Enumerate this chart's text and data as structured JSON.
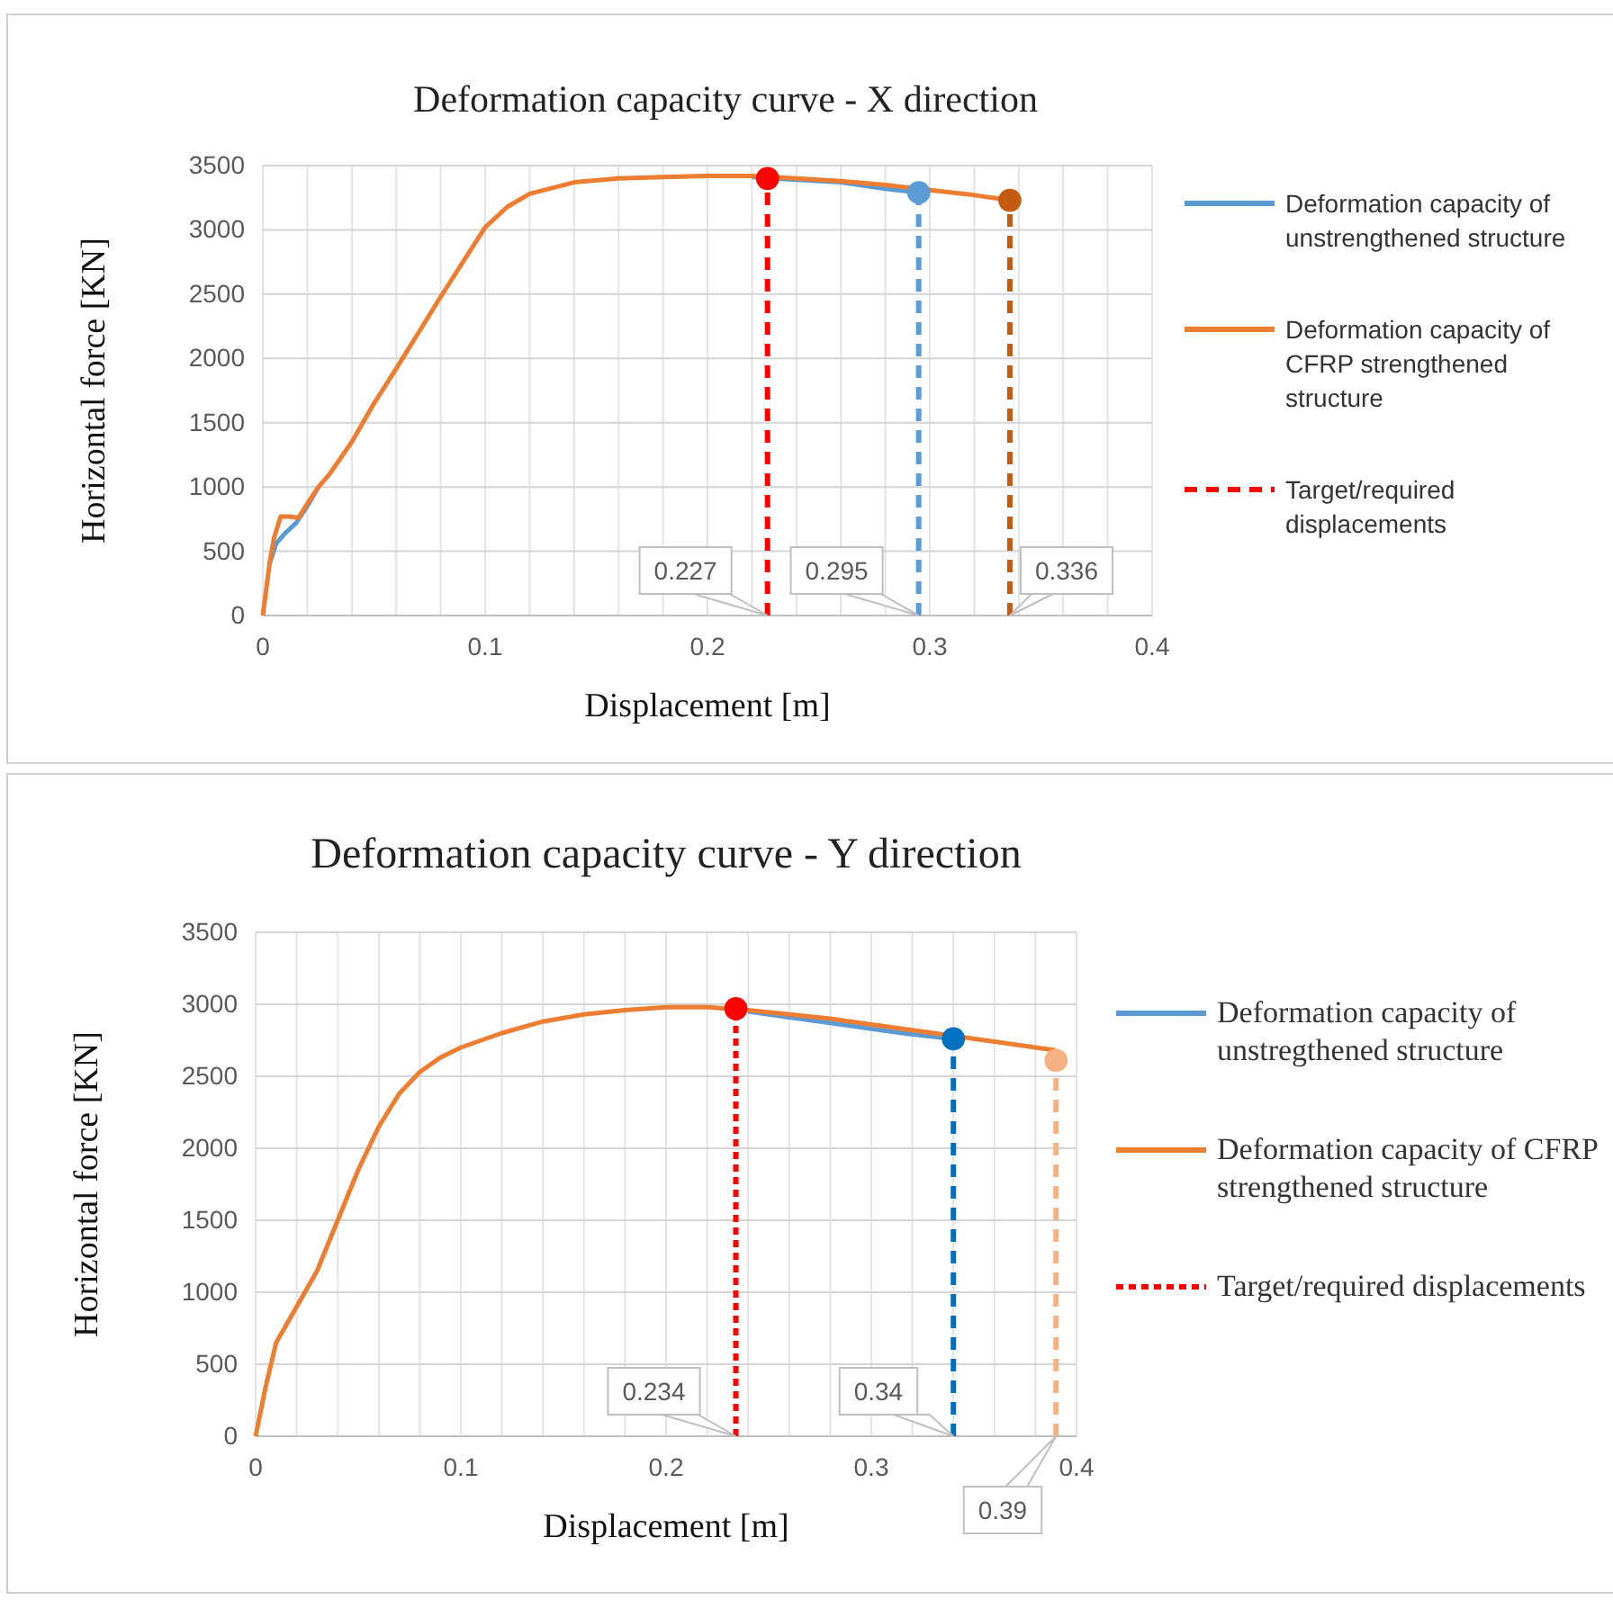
{
  "chart_data": [
    {
      "type": "line",
      "title": "Deformation capacity curve - X direction",
      "xlabel": "Displacement [m]",
      "ylabel": "Horizontal force [KN]",
      "xlim": [
        0,
        0.4
      ],
      "ylim": [
        0,
        3500
      ],
      "xticks": [
        0,
        {
          "value": 0.02,
          "label": null
        },
        {
          "value": 0.04,
          "label": null
        },
        {
          "value": 0.06,
          "label": null
        },
        {
          "value": 0.08,
          "label": null
        },
        0.1,
        {
          "value": 0.12,
          "label": null
        },
        {
          "value": 0.14,
          "label": null
        },
        {
          "value": 0.16,
          "label": null
        },
        {
          "value": 0.18,
          "label": null
        },
        0.2,
        {
          "value": 0.22,
          "label": null
        },
        {
          "value": 0.24,
          "label": null
        },
        {
          "value": 0.26,
          "label": null
        },
        {
          "value": 0.28,
          "label": null
        },
        0.3,
        {
          "value": 0.32,
          "label": null
        },
        {
          "value": 0.34,
          "label": null
        },
        {
          "value": 0.36,
          "label": null
        },
        {
          "value": 0.38,
          "label": null
        },
        0.4
      ],
      "yticks": [
        0,
        500,
        1000,
        1500,
        2000,
        2500,
        3000,
        3500
      ],
      "grid": true,
      "legend": "right",
      "series": [
        {
          "name": "Deformation capacity of unstrengthened structure",
          "type": "line",
          "color": "#5b9bd5",
          "x": [
            0.003,
            0.006,
            0.01,
            0.015,
            0.02,
            0.025,
            0.03,
            0.04,
            0.05,
            0.06,
            0.07,
            0.08,
            0.09,
            0.1,
            0.11,
            0.12,
            0.14,
            0.16,
            0.18,
            0.2,
            0.22,
            0.24,
            0.26,
            0.28,
            0.295
          ],
          "values": [
            400,
            560,
            640,
            720,
            850,
            1000,
            null,
            null,
            null,
            null,
            null,
            null,
            null,
            null,
            null,
            null,
            null,
            null,
            null,
            null,
            3410,
            3390,
            3370,
            3320,
            3290
          ]
        },
        {
          "name": "Deformation capacity of CFRP strengthened structure",
          "type": "line",
          "color": "#ed7d31",
          "x": [
            0,
            0.003,
            0.005,
            0.008,
            0.012,
            0.016,
            0.02,
            0.025,
            0.03,
            0.04,
            0.05,
            0.06,
            0.07,
            0.08,
            0.09,
            0.1,
            0.11,
            0.12,
            0.14,
            0.16,
            0.18,
            0.2,
            0.22,
            0.24,
            0.26,
            0.28,
            0.3,
            0.32,
            0.336
          ],
          "values": [
            0,
            400,
            600,
            770,
            770,
            760,
            870,
            1000,
            1100,
            1350,
            1650,
            1920,
            2200,
            2480,
            2750,
            3020,
            3180,
            3280,
            3370,
            3400,
            3410,
            3420,
            3420,
            3400,
            3380,
            3350,
            3310,
            3270,
            3230
          ]
        },
        {
          "name": "Target/required displacements",
          "type": "line",
          "line_style": "dashed",
          "color": "#ff0000",
          "x": [
            0.227,
            0.227
          ],
          "values": [
            0,
            3400
          ]
        },
        {
          "type": "line",
          "line_style": "dashed",
          "color": "#5b9bd5",
          "x": [
            0.295,
            0.295
          ],
          "values": [
            0,
            3290
          ]
        },
        {
          "type": "line",
          "line_style": "dashed",
          "color": "#c55a11",
          "x": [
            0.336,
            0.336
          ],
          "values": [
            0,
            3230
          ]
        },
        {
          "type": "scatter",
          "marker": "circle",
          "colors": [
            "#ff0000",
            "#5b9bd5",
            "#c55a11"
          ],
          "x": [
            0.227,
            0.295,
            0.336
          ],
          "values": [
            3400,
            3290,
            3230
          ]
        }
      ],
      "annotations": [
        {
          "text": "0.227",
          "x": 0.227,
          "y": 0
        },
        {
          "text": "0.295",
          "x": 0.295,
          "y": 0
        },
        {
          "text": "0.336",
          "x": 0.336,
          "y": 0
        }
      ]
    },
    {
      "type": "line",
      "title": "Deformation capacity curve - Y direction",
      "xlabel": "Displacement [m]",
      "ylabel": "Horizontal force [KN]",
      "xlim": [
        0,
        0.4
      ],
      "ylim": [
        0,
        3500
      ],
      "xticks": [
        0,
        {
          "value": 0.02,
          "label": null
        },
        {
          "value": 0.04,
          "label": null
        },
        {
          "value": 0.06,
          "label": null
        },
        {
          "value": 0.08,
          "label": null
        },
        0.1,
        {
          "value": 0.12,
          "label": null
        },
        {
          "value": 0.14,
          "label": null
        },
        {
          "value": 0.16,
          "label": null
        },
        {
          "value": 0.18,
          "label": null
        },
        0.2,
        {
          "value": 0.22,
          "label": null
        },
        {
          "value": 0.24,
          "label": null
        },
        {
          "value": 0.26,
          "label": null
        },
        {
          "value": 0.28,
          "label": null
        },
        0.3,
        {
          "value": 0.32,
          "label": null
        },
        {
          "value": 0.34,
          "label": null
        },
        {
          "value": 0.36,
          "label": null
        },
        {
          "value": 0.38,
          "label": null
        },
        0.4
      ],
      "yticks": [
        0,
        500,
        1000,
        1500,
        2000,
        2500,
        3000,
        3500
      ],
      "grid": true,
      "legend": "right",
      "series": [
        {
          "name": "Deformation capacity of unstregthened structure",
          "type": "line",
          "color": "#5b9bd5",
          "x": [
            0.24,
            0.26,
            0.28,
            0.3,
            0.32,
            0.34
          ],
          "values": [
            2950,
            2910,
            2870,
            2830,
            2790,
            2760
          ]
        },
        {
          "name": "Deformation capacity of CFRP strengthened structure",
          "type": "line",
          "color": "#ed7d31",
          "x": [
            0,
            0.005,
            0.01,
            0.02,
            0.03,
            0.04,
            0.05,
            0.06,
            0.07,
            0.08,
            0.09,
            0.1,
            0.12,
            0.14,
            0.16,
            0.18,
            0.2,
            0.22,
            0.24,
            0.26,
            0.28,
            0.3,
            0.32,
            0.36,
            0.39
          ],
          "values": [
            0,
            350,
            650,
            900,
            1150,
            1500,
            1850,
            2150,
            2380,
            2530,
            2630,
            2700,
            2800,
            2880,
            2930,
            2960,
            2980,
            2980,
            2960,
            2930,
            2900,
            2860,
            2820,
            2740,
            2680
          ]
        },
        {
          "name": "Target/required displacements",
          "type": "line",
          "line_style": "dotted",
          "color": "#ff0000",
          "x": [
            0.234,
            0.234
          ],
          "values": [
            0,
            2970
          ]
        },
        {
          "type": "line",
          "line_style": "dashed",
          "color": "#0070c0",
          "x": [
            0.34,
            0.34
          ],
          "values": [
            0,
            2760
          ]
        },
        {
          "type": "line",
          "line_style": "dashed",
          "color": "#f4b183",
          "x": [
            0.39,
            0.39
          ],
          "values": [
            0,
            2610
          ]
        },
        {
          "type": "scatter",
          "marker": "circle",
          "colors": [
            "#ff0000",
            "#0070c0",
            "#f4b183"
          ],
          "x": [
            0.234,
            0.34,
            0.39
          ],
          "values": [
            2970,
            2760,
            2610
          ]
        }
      ],
      "annotations": [
        {
          "text": "0.234",
          "x": 0.234,
          "y": 0
        },
        {
          "text": "0.34",
          "x": 0.34,
          "y": 0
        },
        {
          "text": "0.39",
          "x": 0.39,
          "y": 0
        }
      ]
    }
  ]
}
